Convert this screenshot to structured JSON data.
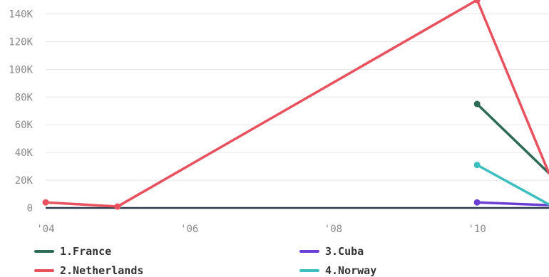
{
  "chart_data": {
    "type": "line",
    "x_tick_labels": [
      "'04",
      "'06",
      "'08",
      "'10"
    ],
    "y_tick_labels": [
      "0",
      "20K",
      "40K",
      "60K",
      "80K",
      "100K",
      "120K",
      "140K"
    ],
    "ylim": [
      0,
      150000
    ],
    "xlim": [
      2004,
      2011
    ],
    "grid": true,
    "legend_position": "bottom",
    "series": [
      {
        "name": "1.France",
        "color": "#2e6b57",
        "points": [
          [
            2010,
            75000
          ],
          [
            2011,
            25000
          ]
        ]
      },
      {
        "name": "2.Netherlands",
        "color": "#e8515e",
        "points": [
          [
            2004,
            4000
          ],
          [
            2005,
            1000
          ],
          [
            2010,
            150000
          ],
          [
            2011,
            25000
          ]
        ]
      },
      {
        "name": "3.Cuba",
        "color": "#6b3fd4",
        "points": [
          [
            2010,
            4000
          ],
          [
            2011,
            2000
          ]
        ]
      },
      {
        "name": "4.Norway",
        "color": "#3dbfbf",
        "points": [
          [
            2010,
            31000
          ],
          [
            2011,
            2500
          ]
        ]
      }
    ],
    "baseline_color": "#2b3a4a"
  }
}
